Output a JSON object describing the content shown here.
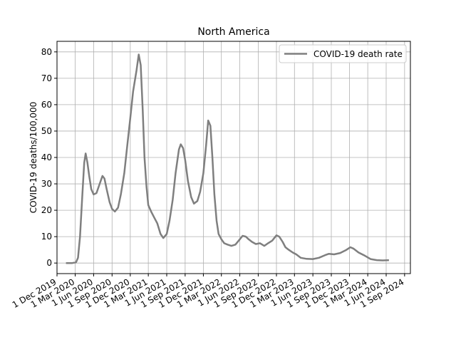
{
  "chart_data": {
    "type": "line",
    "title": "North America",
    "xlabel": "",
    "ylabel": "COVID-19 deaths/100,000",
    "xlim": [
      "2019-12-01",
      "2024-09-30"
    ],
    "ylim": [
      -4,
      84
    ],
    "yticks": [
      0,
      10,
      20,
      30,
      40,
      50,
      60,
      70,
      80
    ],
    "xticks": [
      {
        "date": "2019-12-01",
        "label": "1 Dec 2019"
      },
      {
        "date": "2020-03-01",
        "label": "1 Mar 2020"
      },
      {
        "date": "2020-06-01",
        "label": "1 Jun 2020"
      },
      {
        "date": "2020-09-01",
        "label": "1 Sep 2020"
      },
      {
        "date": "2020-12-01",
        "label": "1 Dec 2020"
      },
      {
        "date": "2021-03-01",
        "label": "1 Mar 2021"
      },
      {
        "date": "2021-06-01",
        "label": "1 Jun 2021"
      },
      {
        "date": "2021-09-01",
        "label": "1 Sep 2021"
      },
      {
        "date": "2021-12-01",
        "label": "1 Dec 2021"
      },
      {
        "date": "2022-03-01",
        "label": "1 Mar 2022"
      },
      {
        "date": "2022-06-01",
        "label": "1 Jun 2022"
      },
      {
        "date": "2022-09-01",
        "label": "1 Sep 2022"
      },
      {
        "date": "2022-12-01",
        "label": "1 Dec 2022"
      },
      {
        "date": "2023-03-01",
        "label": "1 Mar 2023"
      },
      {
        "date": "2023-06-01",
        "label": "1 Jun 2023"
      },
      {
        "date": "2023-09-01",
        "label": "1 Sep 2023"
      },
      {
        "date": "2023-12-01",
        "label": "1 Dec 2023"
      },
      {
        "date": "2024-03-01",
        "label": "1 Mar 2024"
      },
      {
        "date": "2024-06-01",
        "label": "1 Jun 2024"
      },
      {
        "date": "2024-09-01",
        "label": "1 Sep 2024"
      }
    ],
    "grid": true,
    "legend_position": "top-right",
    "series": [
      {
        "name": "COVID-19 death rate",
        "color": "#7f7f7f",
        "points": [
          [
            "2020-01-15",
            0
          ],
          [
            "2020-02-15",
            0
          ],
          [
            "2020-03-05",
            0.3
          ],
          [
            "2020-03-15",
            2
          ],
          [
            "2020-03-25",
            10
          ],
          [
            "2020-04-05",
            25
          ],
          [
            "2020-04-15",
            38
          ],
          [
            "2020-04-22",
            41.5
          ],
          [
            "2020-05-01",
            38
          ],
          [
            "2020-05-10",
            33
          ],
          [
            "2020-05-20",
            28
          ],
          [
            "2020-06-01",
            26
          ],
          [
            "2020-06-15",
            26.5
          ],
          [
            "2020-07-01",
            30
          ],
          [
            "2020-07-15",
            33
          ],
          [
            "2020-07-25",
            32
          ],
          [
            "2020-08-05",
            28
          ],
          [
            "2020-08-20",
            23
          ],
          [
            "2020-09-01",
            20.5
          ],
          [
            "2020-09-15",
            19.5
          ],
          [
            "2020-10-01",
            21
          ],
          [
            "2020-10-15",
            26
          ],
          [
            "2020-11-01",
            34
          ],
          [
            "2020-11-15",
            44
          ],
          [
            "2020-12-01",
            55
          ],
          [
            "2020-12-15",
            65
          ],
          [
            "2021-01-01",
            73
          ],
          [
            "2021-01-12",
            79
          ],
          [
            "2021-01-22",
            75
          ],
          [
            "2021-02-01",
            58
          ],
          [
            "2021-02-10",
            40
          ],
          [
            "2021-02-20",
            29
          ],
          [
            "2021-03-01",
            22
          ],
          [
            "2021-03-15",
            19.5
          ],
          [
            "2021-04-01",
            17
          ],
          [
            "2021-04-15",
            15
          ],
          [
            "2021-05-01",
            11
          ],
          [
            "2021-05-15",
            9.5
          ],
          [
            "2021-06-01",
            11
          ],
          [
            "2021-06-15",
            16
          ],
          [
            "2021-07-01",
            24
          ],
          [
            "2021-07-15",
            34
          ],
          [
            "2021-08-01",
            43
          ],
          [
            "2021-08-10",
            45
          ],
          [
            "2021-08-22",
            43.5
          ],
          [
            "2021-09-01",
            39
          ],
          [
            "2021-09-15",
            31
          ],
          [
            "2021-10-01",
            25
          ],
          [
            "2021-10-15",
            22.5
          ],
          [
            "2021-11-01",
            23.5
          ],
          [
            "2021-11-15",
            27
          ],
          [
            "2021-12-01",
            34
          ],
          [
            "2021-12-15",
            45
          ],
          [
            "2021-12-25",
            54
          ],
          [
            "2022-01-05",
            52
          ],
          [
            "2022-01-15",
            40
          ],
          [
            "2022-01-25",
            26
          ],
          [
            "2022-02-05",
            16
          ],
          [
            "2022-02-15",
            11
          ],
          [
            "2022-03-01",
            9
          ],
          [
            "2022-03-15",
            7.5
          ],
          [
            "2022-04-01",
            7
          ],
          [
            "2022-04-20",
            6.5
          ],
          [
            "2022-05-10",
            7
          ],
          [
            "2022-06-01",
            9
          ],
          [
            "2022-06-15",
            10.3
          ],
          [
            "2022-07-01",
            10
          ],
          [
            "2022-07-15",
            9
          ],
          [
            "2022-08-01",
            8
          ],
          [
            "2022-08-20",
            7.2
          ],
          [
            "2022-09-10",
            7.5
          ],
          [
            "2022-10-01",
            6.5
          ],
          [
            "2022-10-20",
            7.5
          ],
          [
            "2022-11-10",
            8.5
          ],
          [
            "2022-12-01",
            10.5
          ],
          [
            "2022-12-15",
            10
          ],
          [
            "2023-01-01",
            8
          ],
          [
            "2023-01-15",
            6
          ],
          [
            "2023-02-01",
            5
          ],
          [
            "2023-02-20",
            4
          ],
          [
            "2023-03-10",
            3.3
          ],
          [
            "2023-04-01",
            2
          ],
          [
            "2023-05-01",
            1.6
          ],
          [
            "2023-06-01",
            1.5
          ],
          [
            "2023-07-01",
            2
          ],
          [
            "2023-08-01",
            3
          ],
          [
            "2023-08-20",
            3.5
          ],
          [
            "2023-09-15",
            3.3
          ],
          [
            "2023-10-15",
            3.8
          ],
          [
            "2023-11-15",
            5
          ],
          [
            "2023-12-05",
            6
          ],
          [
            "2023-12-20",
            5.5
          ],
          [
            "2024-01-15",
            4
          ],
          [
            "2024-02-15",
            2.8
          ],
          [
            "2024-03-15",
            1.5
          ],
          [
            "2024-04-15",
            1.1
          ],
          [
            "2024-05-15",
            1
          ],
          [
            "2024-06-15",
            1.1
          ]
        ]
      }
    ]
  }
}
